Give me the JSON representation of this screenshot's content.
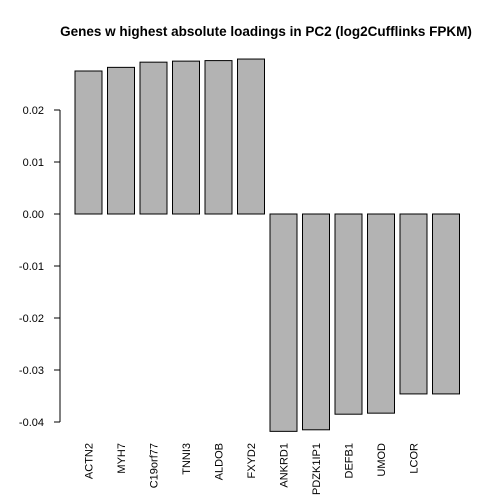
{
  "chart_data": {
    "type": "bar",
    "title": "Genes w highest absolute loadings in PC2 (log2Cufflinks FPKM)",
    "xlabel": "",
    "ylabel": "",
    "categories": [
      "ACTN2",
      "MYH7",
      "C19orf77",
      "TNNI3",
      "ALDOB",
      "FXYD2",
      "ANKRD1",
      "PDZK1IP1",
      "DEFB1",
      "UMOD",
      "LCOR",
      ""
    ],
    "values": [
      0.0275,
      0.0282,
      0.0292,
      0.0294,
      0.0295,
      0.0298,
      -0.0418,
      -0.0415,
      -0.0385,
      -0.0383,
      -0.0346,
      -0.0346
    ],
    "yticks": [
      -0.04,
      -0.03,
      -0.02,
      -0.01,
      0.0,
      0.01,
      0.02
    ],
    "ytick_labels": [
      "-0.04",
      "-0.03",
      "-0.02",
      "-0.01",
      "0.00",
      "0.01",
      "0.02"
    ],
    "ylim": [
      -0.042,
      0.03
    ],
    "grid": false,
    "bar_color": "#b3b3b3"
  }
}
